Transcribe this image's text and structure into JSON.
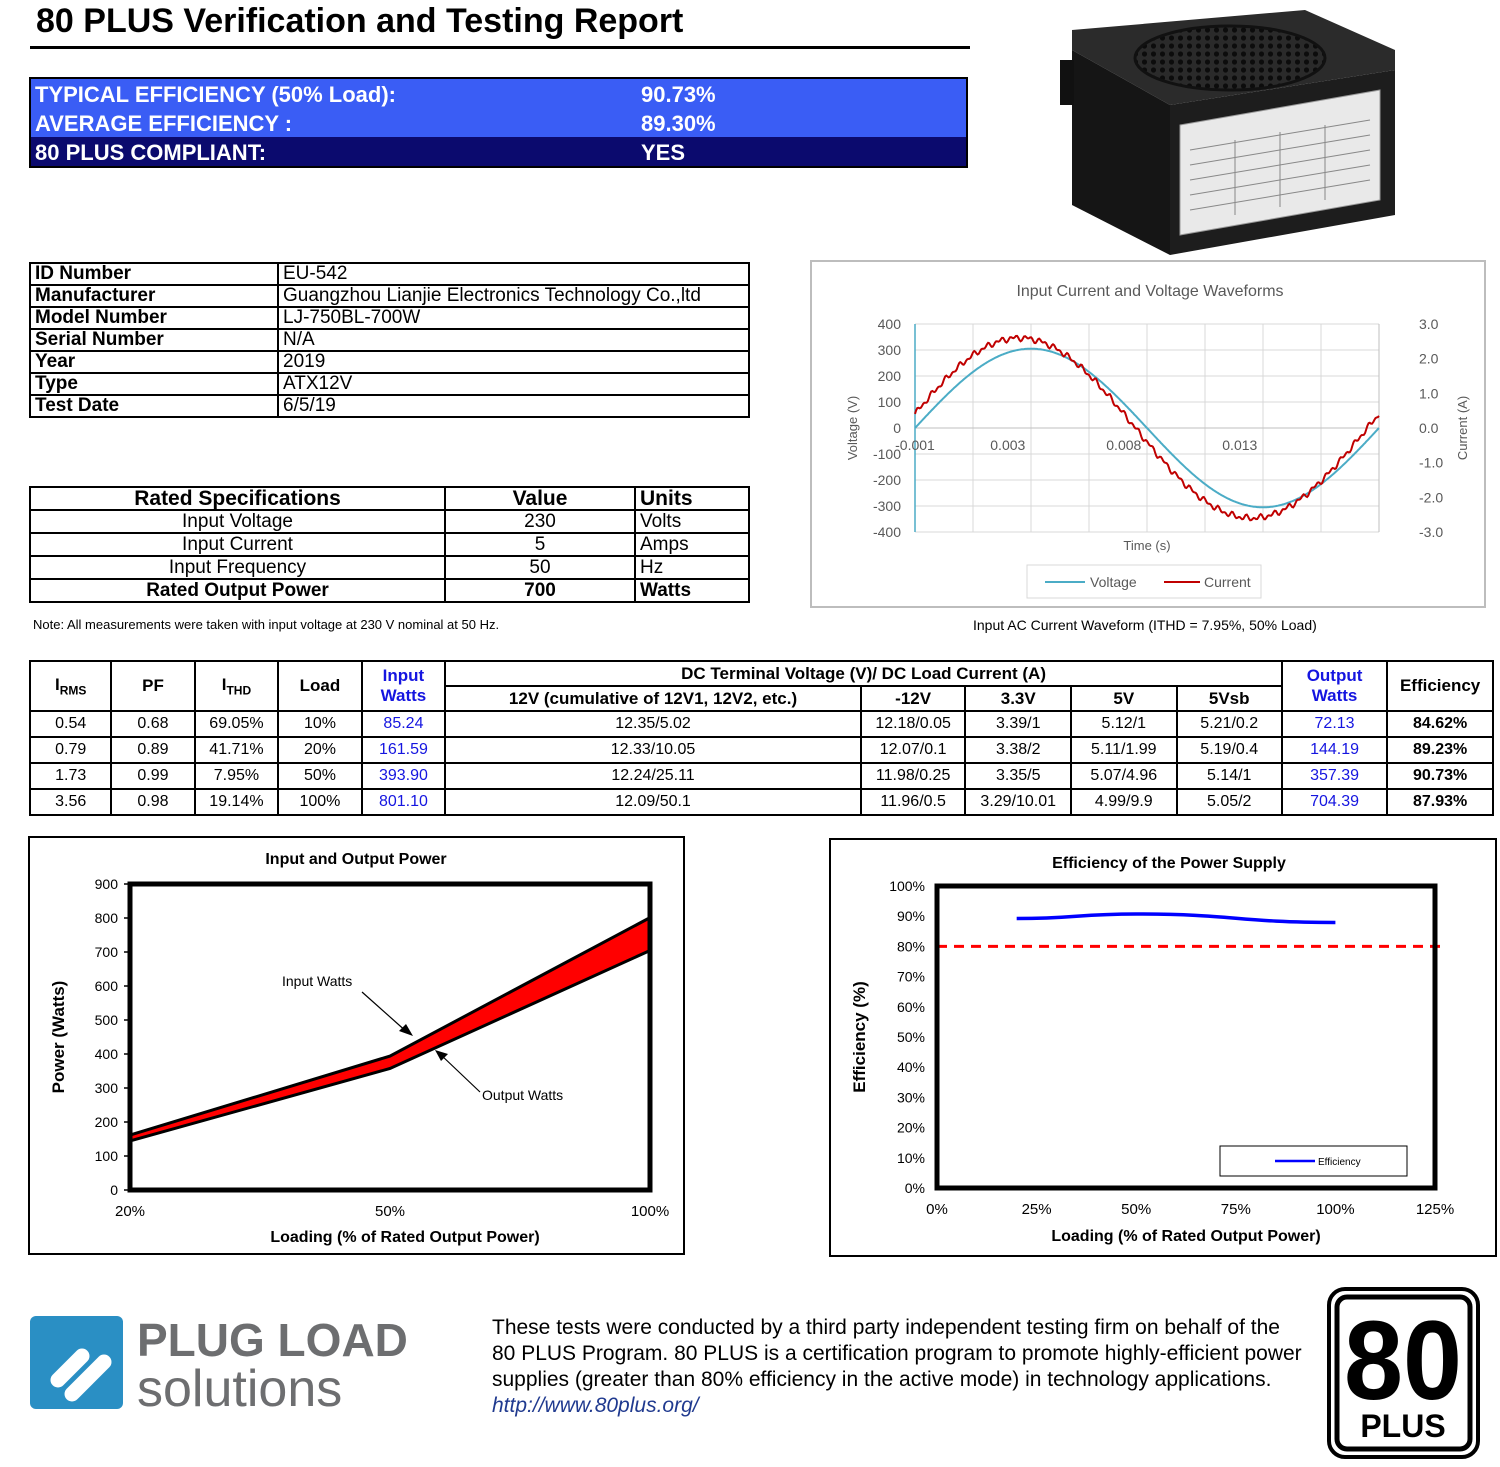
{
  "title": "80 PLUS Verification and Testing Report",
  "summary": [
    {
      "label": "TYPICAL EFFICIENCY (50% Load):",
      "value": "90.73%"
    },
    {
      "label": "AVERAGE EFFICIENCY :",
      "value": "89.30%"
    },
    {
      "label": "80 PLUS COMPLIANT:",
      "value": "YES"
    }
  ],
  "colors": {
    "summary_blue": "#3a5df5",
    "summary_navy": "#0b0a6e",
    "voltage": "#4bacc6",
    "current": "#c00000",
    "link_blue": "#1515e0"
  },
  "product_info": [
    {
      "key": "ID Number",
      "value": "EU-542"
    },
    {
      "key": "Manufacturer",
      "value": "Guangzhou Lianjie Electronics Technology Co.,ltd"
    },
    {
      "key": "Model Number",
      "value": "LJ-750BL-700W"
    },
    {
      "key": "Serial Number",
      "value": "N/A"
    },
    {
      "key": "Year",
      "value": "2019"
    },
    {
      "key": "Type",
      "value": "ATX12V"
    },
    {
      "key": "Test Date",
      "value": "6/5/19"
    }
  ],
  "rated": {
    "headers": [
      "Rated Specifications",
      "Value",
      "Units"
    ],
    "rows": [
      [
        "Input Voltage",
        "230",
        "Volts"
      ],
      [
        "Input Current",
        "5",
        "Amps"
      ],
      [
        "Input Frequency",
        "50",
        "Hz"
      ],
      [
        "Rated Output Power",
        "700",
        "Watts"
      ]
    ]
  },
  "note": "Note: All measurements were taken with input voltage at 230 V nominal at 50 Hz.",
  "waveform_caption": "Input AC Current Waveform (ITHD = 7.95%, 50% Load)",
  "data_table": {
    "h_irms": "I",
    "h_irms_sub": "RMS",
    "h_pf": "PF",
    "h_ithd": "I",
    "h_ithd_sub": "THD",
    "h_load": "Load",
    "h_input_watts": "Input Watts",
    "h_dc": "DC Terminal Voltage (V)/ DC Load Current (A)",
    "h_12v": "12V (cumulative of 12V1, 12V2, etc.)",
    "h_m12v": "-12V",
    "h_33v": "3.3V",
    "h_5v": "5V",
    "h_5vsb": "5Vsb",
    "h_output_watts": "Output Watts",
    "h_eff": "Efficiency",
    "rows": [
      [
        "0.54",
        "0.68",
        "69.05%",
        "10%",
        "85.24",
        "12.35/5.02",
        "12.18/0.05",
        "3.39/1",
        "5.12/1",
        "5.21/0.2",
        "72.13",
        "84.62%"
      ],
      [
        "0.79",
        "0.89",
        "41.71%",
        "20%",
        "161.59",
        "12.33/10.05",
        "12.07/0.1",
        "3.38/2",
        "5.11/1.99",
        "5.19/0.4",
        "144.19",
        "89.23%"
      ],
      [
        "1.73",
        "0.99",
        "7.95%",
        "50%",
        "393.90",
        "12.24/25.11",
        "11.98/0.25",
        "3.35/5",
        "5.07/4.96",
        "5.14/1",
        "357.39",
        "90.73%"
      ],
      [
        "3.56",
        "0.98",
        "19.14%",
        "100%",
        "801.10",
        "12.09/50.1",
        "11.96/0.5",
        "3.29/10.01",
        "4.99/9.9",
        "5.05/2",
        "704.39",
        "87.93%"
      ]
    ]
  },
  "chart_data": [
    {
      "type": "line",
      "title": "Input Current and Voltage Waveforms",
      "xlabel": "Time (s)",
      "ylabel": "Voltage (V)",
      "y2label": "Current (A)",
      "xticks": [
        "-0.001",
        "0.003",
        "0.008",
        "0.013"
      ],
      "xlim": [
        -0.001,
        0.019
      ],
      "ylim": [
        -400,
        400
      ],
      "y2lim": [
        -3.0,
        3.0
      ],
      "yticks": [
        "400",
        "300",
        "200",
        "100",
        "0",
        "-100",
        "-200",
        "-300",
        "-400"
      ],
      "y2ticks": [
        "3.0",
        "2.0",
        "1.0",
        "0.0",
        "-1.0",
        "-2.0",
        "-3.0"
      ],
      "series": [
        {
          "name": "Voltage",
          "amplitude": 305,
          "phase_peak_s": 0.004
        },
        {
          "name": "Current",
          "amplitude_a": 2.6,
          "phase_peak_s": 0.0035
        }
      ],
      "legend": "bottom"
    },
    {
      "type": "area",
      "title": "Input and Output Power",
      "xlabel": "Loading (% of Rated Output Power)",
      "ylabel": "Power (Watts)",
      "categories": [
        "20%",
        "50%",
        "100%"
      ],
      "ylim": [
        0,
        900
      ],
      "yticks": [
        "900",
        "800",
        "700",
        "600",
        "500",
        "400",
        "300",
        "200",
        "100",
        "0"
      ],
      "series": [
        {
          "name": "Input Watts",
          "values": [
            161.59,
            393.9,
            801.1
          ]
        },
        {
          "name": "Output Watts",
          "values": [
            144.19,
            357.39,
            704.39
          ]
        }
      ]
    },
    {
      "type": "line",
      "title": "Efficiency of the Power Supply",
      "xlabel": "Loading (% of Rated Output Power)",
      "ylabel": "Efficiency (%)",
      "xticks": [
        "0%",
        "25%",
        "50%",
        "75%",
        "100%",
        "125%"
      ],
      "yticks": [
        "100%",
        "90%",
        "80%",
        "70%",
        "60%",
        "50%",
        "40%",
        "30%",
        "20%",
        "10%",
        "0%"
      ],
      "xlim": [
        0,
        125
      ],
      "ylim": [
        0,
        100
      ],
      "threshold": 80,
      "series": [
        {
          "name": "Efficiency",
          "x": [
            20,
            50,
            100
          ],
          "values": [
            89.23,
            90.73,
            87.93
          ]
        }
      ],
      "legend": "bottom-right"
    }
  ],
  "logo": {
    "line1": "PLUG LOAD",
    "line2": "solutions"
  },
  "footer": {
    "line1": "These tests were conducted by a third party independent testing firm on behalf of the",
    "line2": "80 PLUS Program. 80 PLUS is a certification program to promote highly-efficient power",
    "line3": "supplies (greater than 80% efficiency in the active mode) in technology applications.",
    "url": "http://www.80plus.org/"
  },
  "badge": {
    "number": "80",
    "word": "PLUS"
  }
}
